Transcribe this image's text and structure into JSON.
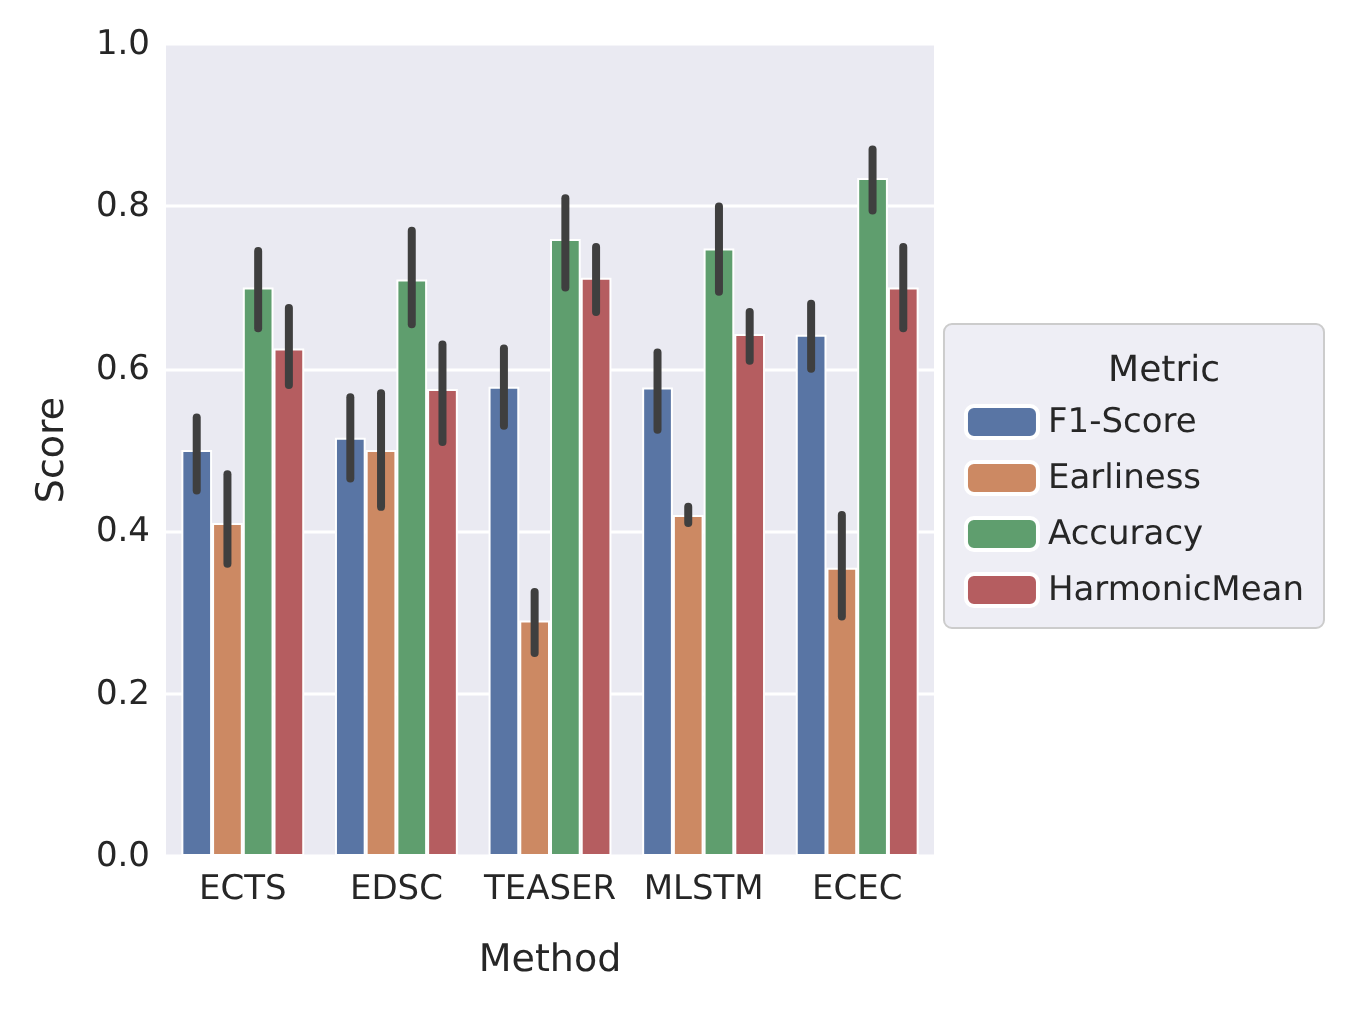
{
  "chart_data": {
    "type": "bar",
    "xlabel": "Method",
    "ylabel": "Score",
    "legend_title": "Metric",
    "legend": "right",
    "grid": "y",
    "categories": [
      "ECTS",
      "EDSC",
      "TEASER",
      "MLSTM",
      "ECEC"
    ],
    "ylim": [
      0,
      1
    ],
    "yticks": [
      {
        "value": 0,
        "label": "0.0"
      },
      {
        "value": 0.2,
        "label": "0.2"
      },
      {
        "value": 0.4,
        "label": "0.4"
      },
      {
        "value": 0.6,
        "label": "0.6"
      },
      {
        "value": 0.8,
        "label": "0.8"
      },
      {
        "value": 1,
        "label": "1.0"
      }
    ],
    "series": [
      {
        "name": "F1-Score",
        "color": "#5975a4",
        "values": [
          0.5,
          0.515,
          0.578,
          0.577,
          0.642
        ],
        "errors": [
          [
            0.45,
            0.54
          ],
          [
            0.465,
            0.565
          ],
          [
            0.53,
            0.625
          ],
          [
            0.525,
            0.62
          ],
          [
            0.6,
            0.68
          ]
        ]
      },
      {
        "name": "Earliness",
        "color": "#cc8963",
        "values": [
          0.41,
          0.5,
          0.29,
          0.42,
          0.355
        ],
        "errors": [
          [
            0.36,
            0.47
          ],
          [
            0.43,
            0.57
          ],
          [
            0.25,
            0.325
          ],
          [
            0.41,
            0.43
          ],
          [
            0.295,
            0.42
          ]
        ]
      },
      {
        "name": "Accuracy",
        "color": "#5f9e6e",
        "values": [
          0.7,
          0.71,
          0.76,
          0.748,
          0.835
        ],
        "errors": [
          [
            0.65,
            0.745
          ],
          [
            0.655,
            0.77
          ],
          [
            0.7,
            0.81
          ],
          [
            0.695,
            0.8
          ],
          [
            0.795,
            0.87
          ]
        ]
      },
      {
        "name": "HarmonicMean",
        "color": "#b55d60",
        "values": [
          0.625,
          0.575,
          0.712,
          0.643,
          0.7
        ],
        "errors": [
          [
            0.58,
            0.675
          ],
          [
            0.51,
            0.63
          ],
          [
            0.67,
            0.75
          ],
          [
            0.61,
            0.67
          ],
          [
            0.65,
            0.75
          ]
        ]
      }
    ]
  }
}
